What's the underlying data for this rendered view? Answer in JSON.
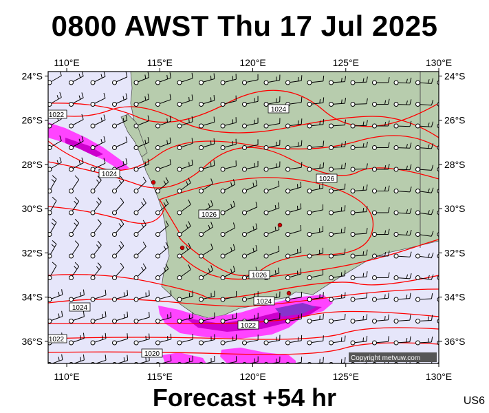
{
  "header": {
    "title": "0800 AWST Thu 17 Jul 2025"
  },
  "footer": {
    "forecast_label": "Forecast +54 hr",
    "station_code": "US6"
  },
  "map": {
    "lon_range": [
      109,
      130
    ],
    "lat_range": [
      -37,
      -23.8
    ],
    "lon_ticks": [
      {
        "value": 110,
        "label": "110°E"
      },
      {
        "value": 115,
        "label": "115°E"
      },
      {
        "value": 120,
        "label": "120°E"
      },
      {
        "value": 125,
        "label": "125°E"
      },
      {
        "value": 130,
        "label": "130°E"
      }
    ],
    "lat_ticks": [
      {
        "value": -24,
        "label": "24°S"
      },
      {
        "value": -26,
        "label": "26°S"
      },
      {
        "value": -28,
        "label": "28°S"
      },
      {
        "value": -30,
        "label": "30°S"
      },
      {
        "value": -32,
        "label": "32°S"
      },
      {
        "value": -34,
        "label": "34°S"
      },
      {
        "value": -36,
        "label": "36°S"
      }
    ],
    "colors": {
      "ocean": "#e6e6fa",
      "land": "#b7ccad",
      "land_dark": "#9fb895",
      "isobar": "#ff0000",
      "precip_light": "#ff44ff",
      "precip_heavy": "#cc00cc",
      "precip_core": "#8833cc"
    },
    "isobar_labels": [
      {
        "text": "1024"
      },
      {
        "text": "1022"
      },
      {
        "text": "1024"
      },
      {
        "text": "1026"
      },
      {
        "text": "1026"
      },
      {
        "text": "1026"
      },
      {
        "text": "1024"
      },
      {
        "text": "1024"
      },
      {
        "text": "1022"
      },
      {
        "text": "1022"
      },
      {
        "text": "1020"
      }
    ],
    "copyright": "Copyright metvuw.com"
  }
}
